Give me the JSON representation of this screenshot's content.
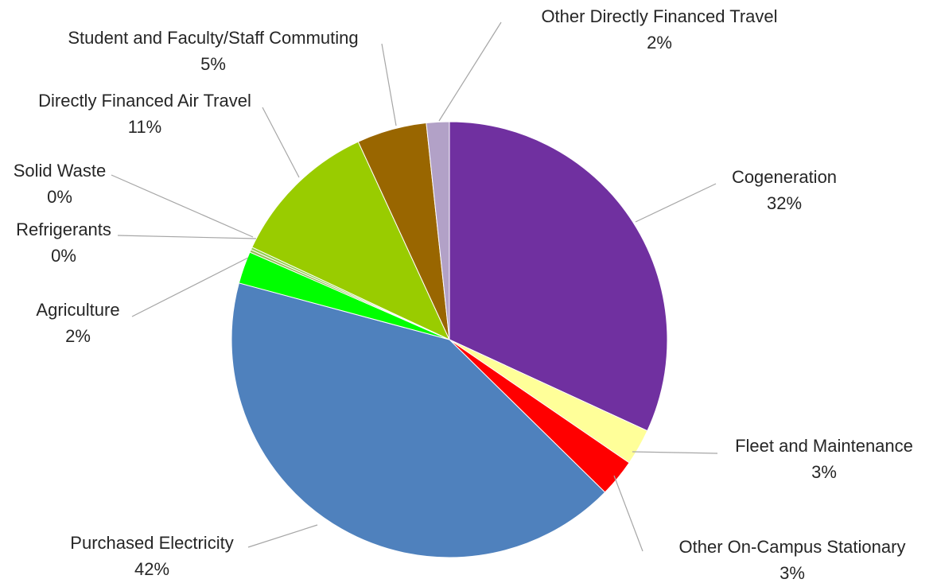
{
  "chart_data": {
    "type": "pie",
    "start_angle_deg": 0,
    "direction": "clockwise",
    "legend": "none",
    "slices": [
      {
        "label": "Cogeneration",
        "percent_label": "32%",
        "value": 32.0,
        "color": "#7030a0"
      },
      {
        "label": "Fleet and Maintenance",
        "percent_label": "3%",
        "value": 2.7,
        "color": "#ffff99"
      },
      {
        "label": "Other On-Campus Stationary",
        "percent_label": "3%",
        "value": 2.8,
        "color": "#ff0000"
      },
      {
        "label": "Purchased Electricity",
        "percent_label": "42%",
        "value": 42.0,
        "color": "#4f81bd"
      },
      {
        "label": "Agriculture",
        "percent_label": "2%",
        "value": 2.4,
        "color": "#00ff00"
      },
      {
        "label": "Refrigerants",
        "percent_label": "0%",
        "value": 0.2,
        "color": "#9bbb59"
      },
      {
        "label": "Solid Waste",
        "percent_label": "0%",
        "value": 0.2,
        "color": "#92d050"
      },
      {
        "label": "Directly Financed Air Travel",
        "percent_label": "11%",
        "value": 11.2,
        "color": "#99cc00"
      },
      {
        "label": "Student and Faculty/Staff Commuting",
        "percent_label": "5%",
        "value": 5.2,
        "color": "#996600"
      },
      {
        "label": "Other Directly Financed Travel",
        "percent_label": "2%",
        "value": 1.7,
        "color": "#b2a1c7"
      }
    ]
  }
}
